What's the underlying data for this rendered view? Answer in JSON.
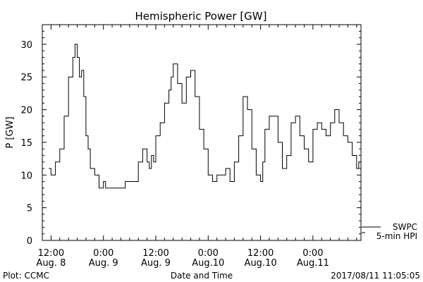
{
  "chart_data": {
    "type": "line",
    "title": "Hemispheric Power [GW]",
    "xlabel": "Date and Time",
    "ylabel": "P [GW]",
    "ylim": [
      0,
      33
    ],
    "grid": false,
    "legend_position": "bottom-right",
    "x_tick_labels": [
      [
        "12:00",
        "Aug. 8"
      ],
      [
        "0:00",
        "Aug. 9"
      ],
      [
        "12:00",
        "Aug. 9"
      ],
      [
        "0:00",
        "Aug.10"
      ],
      [
        "12:00",
        "Aug.10"
      ],
      [
        "0:00",
        "Aug.11"
      ]
    ],
    "y_ticks": [
      0,
      5,
      10,
      15,
      20,
      25,
      30
    ],
    "legend": [
      "SWPC",
      "5-min HPI"
    ],
    "series": [
      {
        "name": "5-min HPI",
        "color": "#000000",
        "x": [
          "2017-08-08 11:30",
          "2017-08-08 12:00",
          "2017-08-08 13:00",
          "2017-08-08 14:00",
          "2017-08-08 15:00",
          "2017-08-08 16:00",
          "2017-08-08 17:00",
          "2017-08-08 17:30",
          "2017-08-08 18:00",
          "2017-08-08 18:30",
          "2017-08-08 19:00",
          "2017-08-08 19:30",
          "2017-08-08 20:00",
          "2017-08-08 20:30",
          "2017-08-08 21:00",
          "2017-08-08 22:00",
          "2017-08-08 23:00",
          "2017-08-08 23:30",
          "2017-08-09 00:00",
          "2017-08-09 00:30",
          "2017-08-09 01:00",
          "2017-08-09 03:00",
          "2017-08-09 05:00",
          "2017-08-09 07:00",
          "2017-08-09 08:00",
          "2017-08-09 09:00",
          "2017-08-09 10:00",
          "2017-08-09 10:30",
          "2017-08-09 11:00",
          "2017-08-09 11:30",
          "2017-08-09 12:00",
          "2017-08-09 13:00",
          "2017-08-09 14:00",
          "2017-08-09 15:00",
          "2017-08-09 15:30",
          "2017-08-09 16:00",
          "2017-08-09 17:00",
          "2017-08-09 18:00",
          "2017-08-09 19:00",
          "2017-08-09 20:00",
          "2017-08-09 21:00",
          "2017-08-09 22:00",
          "2017-08-09 23:00",
          "2017-08-10 00:00",
          "2017-08-10 01:00",
          "2017-08-10 02:00",
          "2017-08-10 03:00",
          "2017-08-10 04:00",
          "2017-08-10 05:00",
          "2017-08-10 06:00",
          "2017-08-10 07:00",
          "2017-08-10 08:00",
          "2017-08-10 09:00",
          "2017-08-10 10:00",
          "2017-08-10 11:00",
          "2017-08-10 12:00",
          "2017-08-10 12:30",
          "2017-08-10 13:00",
          "2017-08-10 14:00",
          "2017-08-10 15:00",
          "2017-08-10 16:00",
          "2017-08-10 17:00",
          "2017-08-10 18:00",
          "2017-08-10 19:00",
          "2017-08-10 20:00",
          "2017-08-10 21:00",
          "2017-08-10 22:00",
          "2017-08-10 23:00",
          "2017-08-11 00:00",
          "2017-08-11 01:00",
          "2017-08-11 02:00",
          "2017-08-11 03:00",
          "2017-08-11 04:00",
          "2017-08-11 05:00",
          "2017-08-11 06:00",
          "2017-08-11 07:00",
          "2017-08-11 08:00",
          "2017-08-11 09:00",
          "2017-08-11 10:00",
          "2017-08-11 10:30",
          "2017-08-11 11:00"
        ],
        "y": [
          11,
          10,
          12,
          14,
          19,
          25,
          28,
          30,
          28,
          25,
          26,
          22,
          16,
          14,
          11,
          10,
          8,
          8,
          9,
          8,
          8,
          8,
          9,
          9,
          12,
          14,
          12,
          11,
          13,
          12,
          16,
          18,
          21,
          23,
          25,
          27,
          24,
          21,
          25,
          26,
          22,
          17,
          14,
          10,
          9,
          10,
          10,
          11,
          9,
          12,
          16,
          22,
          20,
          14,
          10,
          9,
          12,
          17,
          19,
          19,
          15,
          11,
          13,
          18,
          19,
          16,
          14,
          12,
          17,
          18,
          17,
          16,
          18,
          20,
          18,
          16,
          15,
          13,
          11,
          12,
          15
        ]
      }
    ]
  },
  "footer": {
    "left": "Plot: CCMC",
    "right": "2017/08/11 11:05:05"
  }
}
